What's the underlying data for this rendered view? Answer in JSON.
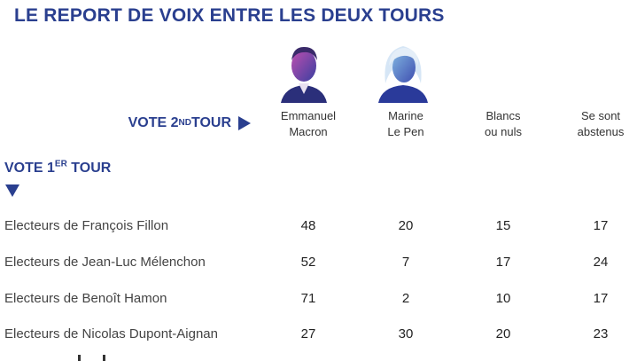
{
  "title": "LE REPORT DE VOIX ENTRE LES DEUX TOURS",
  "vote2": {
    "label": "VOTE 2",
    "sup": "ND",
    "tail": " TOUR"
  },
  "vote1": {
    "label": "VOTE 1",
    "sup": "ER",
    "tail": " TOUR"
  },
  "colors": {
    "accent": "#2a3f8f",
    "text": "#444444"
  },
  "chart_data": {
    "type": "table",
    "title": "LE REPORT DE VOIX ENTRE LES DEUX TOURS",
    "columns": [
      {
        "line1": "Emmanuel",
        "line2": "Macron"
      },
      {
        "line1": "Marine",
        "line2": "Le Pen"
      },
      {
        "line1": "Blancs",
        "line2": "ou nuls"
      },
      {
        "line1": "Se sont",
        "line2": "abstenus"
      }
    ],
    "rows": [
      {
        "label": "Electeurs de François Fillon",
        "values": [
          "48",
          "20",
          "15",
          "17"
        ]
      },
      {
        "label": "Electeurs de Jean-Luc Mélenchon",
        "values": [
          "52",
          "7",
          "17",
          "24"
        ]
      },
      {
        "label": "Electeurs de Benoît Hamon",
        "values": [
          "71",
          "2",
          "10",
          "17"
        ]
      },
      {
        "label": "Electeurs de Nicolas Dupont-Aignan",
        "values": [
          "27",
          "30",
          "20",
          "23"
        ]
      }
    ]
  }
}
